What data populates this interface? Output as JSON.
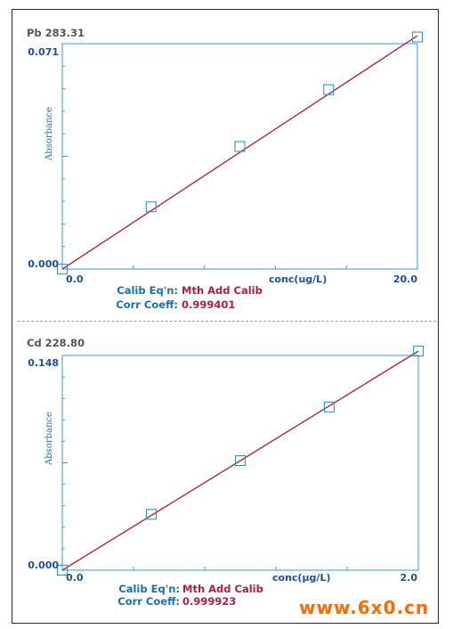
{
  "chart_data": [
    {
      "type": "scatter",
      "title": "Pb 283.31",
      "xlabel": "conc(ug/L)",
      "ylabel": "Absorbance",
      "xlim": [
        0,
        20
      ],
      "ylim": [
        0,
        0.071
      ],
      "x_tick_labels": [
        "0.0",
        "20.0"
      ],
      "y_tick_labels": [
        "0.000",
        "0.071"
      ],
      "points": [
        {
          "x": 0,
          "y": 0.0
        },
        {
          "x": 5,
          "y": 0.0196
        },
        {
          "x": 10,
          "y": 0.0386
        },
        {
          "x": 15,
          "y": 0.0565
        },
        {
          "x": 20,
          "y": 0.0731
        }
      ],
      "fit_line": {
        "x": [
          0,
          20
        ],
        "y": [
          0.0,
          0.0735
        ]
      },
      "calib_label": "Calib Eq'n:",
      "calib_value": "Mth Add Calib",
      "corr_label": "Corr Coeff:",
      "corr_value": "0.999401"
    },
    {
      "type": "scatter",
      "title": "Cd 228.80",
      "xlabel": "conc(µg/L)",
      "ylabel": "Absorbance",
      "xlim": [
        0,
        2
      ],
      "ylim": [
        0,
        0.148
      ],
      "x_tick_labels": [
        "0.0",
        "2.0"
      ],
      "y_tick_labels": [
        "0.000",
        "0.148"
      ],
      "points": [
        {
          "x": 0,
          "y": 0.0
        },
        {
          "x": 0.5,
          "y": 0.0385
        },
        {
          "x": 1.0,
          "y": 0.0755
        },
        {
          "x": 1.5,
          "y": 0.1125
        },
        {
          "x": 2.0,
          "y": 0.151
        }
      ],
      "fit_line": {
        "x": [
          0,
          2
        ],
        "y": [
          0.0,
          0.151
        ]
      },
      "calib_label": "Calib Eq'n:",
      "calib_value": "Mth Add Calib",
      "corr_label": "Corr Coeff:",
      "corr_value": "0.999923"
    }
  ],
  "colors": {
    "axis": "#3a9ad9",
    "marker": "#2a96d6",
    "fit_line": "#b0283a"
  },
  "watermark": "www.6x0.cn"
}
